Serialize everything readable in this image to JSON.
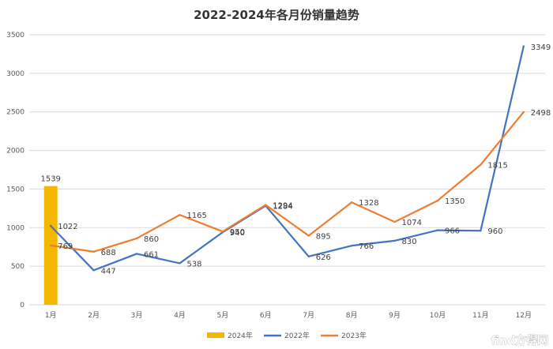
{
  "chart_data": {
    "type": "bar+line",
    "title": "2022-2024年各月份销量趋势",
    "categories": [
      "1月",
      "2月",
      "3月",
      "4月",
      "5月",
      "6月",
      "7月",
      "8月",
      "9月",
      "10月",
      "11月",
      "12月"
    ],
    "y_ticks": [
      "0",
      "500",
      "1000",
      "1500",
      "2000",
      "2500",
      "3000",
      "3500"
    ],
    "ylim": [
      0,
      3500
    ],
    "grid": true,
    "legend_position": "bottom",
    "series": [
      {
        "name": "2024年",
        "kind": "bar",
        "color": "#F2B800",
        "values": [
          1539,
          null,
          null,
          null,
          null,
          null,
          null,
          null,
          null,
          null,
          null,
          null
        ],
        "labels": [
          "1539"
        ]
      },
      {
        "name": "2022年",
        "kind": "line",
        "color": "#4472C4",
        "values": [
          1022,
          447,
          661,
          538,
          940,
          1284,
          626,
          766,
          830,
          966,
          960,
          3349
        ],
        "labels": [
          "1022",
          "447",
          "661",
          "538",
          "940",
          "1284",
          "626",
          "766",
          "830",
          "966",
          "960",
          "3349"
        ]
      },
      {
        "name": "2023年",
        "kind": "line",
        "color": "#ED7D31",
        "values": [
          769,
          688,
          860,
          1165,
          950,
          1294,
          895,
          1328,
          1074,
          1350,
          1815,
          2498
        ],
        "labels": [
          "769",
          "688",
          "860",
          "1165",
          "950",
          "1294",
          "895",
          "1328",
          "1074",
          "1350",
          "1815",
          "2498"
        ]
      }
    ]
  },
  "watermark": {
    "text": "find方得网"
  }
}
